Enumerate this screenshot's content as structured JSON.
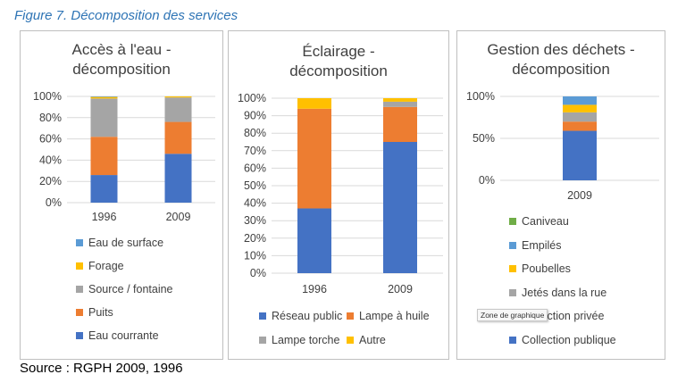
{
  "figure_title": "Figure 7. Décomposition des services",
  "source": "Source : RGPH 2009, 1996",
  "tooltip": "Zone de graphique",
  "chart_data": [
    {
      "type": "bar",
      "stacked": true,
      "title_lines": [
        "Accès à l'eau -",
        "décomposition"
      ],
      "categories": [
        "1996",
        "2009"
      ],
      "ylim": [
        0,
        100
      ],
      "yticks": [
        "0%",
        "20%",
        "40%",
        "60%",
        "80%",
        "100%"
      ],
      "grid": true,
      "legend": "bottom",
      "series": [
        {
          "name": "Eau courrante",
          "color": "#4472c4",
          "values": [
            26,
            46
          ]
        },
        {
          "name": "Puits",
          "color": "#ed7d31",
          "values": [
            36,
            30
          ]
        },
        {
          "name": "Source / fontaine",
          "color": "#a5a5a5",
          "values": [
            36,
            23
          ]
        },
        {
          "name": "Forage",
          "color": "#ffc000",
          "values": [
            1.5,
            1
          ]
        },
        {
          "name": "Eau de surface",
          "color": "#5b9bd5",
          "values": [
            0.5,
            0
          ]
        }
      ]
    },
    {
      "type": "bar",
      "stacked": true,
      "title_lines": [
        "Éclairage -",
        "décomposition"
      ],
      "categories": [
        "1996",
        "2009"
      ],
      "ylim": [
        0,
        100
      ],
      "yticks": [
        "0%",
        "10%",
        "20%",
        "30%",
        "40%",
        "50%",
        "60%",
        "70%",
        "80%",
        "90%",
        "100%"
      ],
      "grid": true,
      "legend": "bottom",
      "series": [
        {
          "name": "Réseau public",
          "color": "#4472c4",
          "values": [
            37,
            75
          ]
        },
        {
          "name": "Lampe à huile",
          "color": "#ed7d31",
          "values": [
            57,
            20
          ]
        },
        {
          "name": "Lampe torche",
          "color": "#a5a5a5",
          "values": [
            0,
            3
          ]
        },
        {
          "name": "Autre",
          "color": "#ffc000",
          "values": [
            6,
            2
          ]
        }
      ]
    },
    {
      "type": "bar",
      "stacked": true,
      "title_lines": [
        "Gestion des déchets -",
        "décomposition"
      ],
      "categories": [
        "2009"
      ],
      "ylim": [
        0,
        100
      ],
      "yticks": [
        "0%",
        "50%",
        "100%"
      ],
      "grid": true,
      "legend": "bottom",
      "series": [
        {
          "name": "Collection publique",
          "color": "#4472c4",
          "values": [
            59
          ]
        },
        {
          "name": "Collection privée",
          "color": "#ed7d31",
          "values": [
            11
          ]
        },
        {
          "name": "Jetés dans la rue",
          "color": "#a5a5a5",
          "values": [
            11
          ]
        },
        {
          "name": "Poubelles",
          "color": "#ffc000",
          "values": [
            9
          ]
        },
        {
          "name": "Empilés",
          "color": "#5b9bd5",
          "values": [
            10
          ]
        },
        {
          "name": "Caniveau",
          "color": "#70ad47",
          "values": [
            0
          ]
        }
      ]
    }
  ]
}
